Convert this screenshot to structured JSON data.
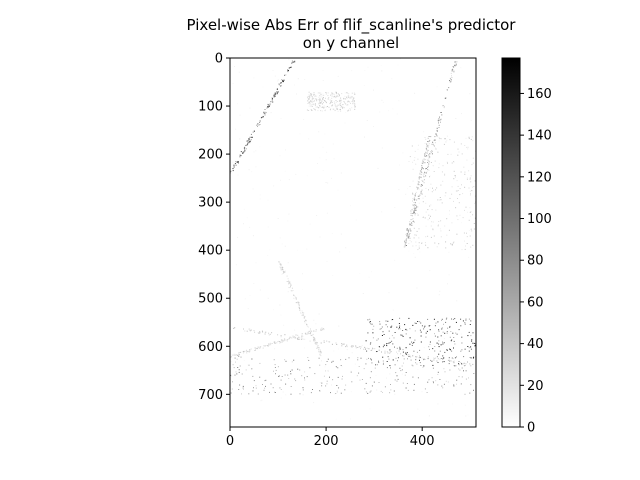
{
  "chart_data": {
    "type": "heatmap",
    "title_line1": "Pixel-wise Abs Err of flif_scanline's predictor",
    "title_line2": "on y channel",
    "xlabel": "",
    "ylabel": "",
    "xlim": [
      0,
      512
    ],
    "ylim": [
      768,
      0
    ],
    "x_ticks": [
      0,
      200,
      400
    ],
    "y_ticks": [
      0,
      100,
      200,
      300,
      400,
      500,
      600,
      700
    ],
    "colorbar": {
      "cmap": "gray_r",
      "vmin": 0,
      "vmax": 177,
      "ticks": [
        0,
        20,
        40,
        60,
        80,
        100,
        120,
        140,
        160
      ]
    },
    "grid": false,
    "features": [
      {
        "kind": "line",
        "from": [
          0,
          240
        ],
        "to": [
          135,
          0
        ],
        "intensity": 0.55
      },
      {
        "kind": "line",
        "from": [
          365,
          390
        ],
        "to": [
          470,
          0
        ],
        "intensity": 0.35
      },
      {
        "kind": "line",
        "from": [
          360,
          400
        ],
        "to": [
          415,
          160
        ],
        "intensity": 0.25
      },
      {
        "kind": "line",
        "from": [
          0,
          560
        ],
        "to": [
          512,
          640
        ],
        "intensity": 0.2
      },
      {
        "kind": "line",
        "from": [
          100,
          420
        ],
        "to": [
          190,
          620
        ],
        "intensity": 0.15
      },
      {
        "kind": "line",
        "from": [
          0,
          620
        ],
        "to": [
          200,
          560
        ],
        "intensity": 0.15
      },
      {
        "kind": "region",
        "x": [
          280,
          512
        ],
        "y": [
          540,
          640
        ],
        "intensity": 0.6
      },
      {
        "kind": "region",
        "x": [
          0,
          512
        ],
        "y": [
          620,
          700
        ],
        "intensity": 0.35
      },
      {
        "kind": "region",
        "x": [
          160,
          260
        ],
        "y": [
          70,
          110
        ],
        "intensity": 0.15
      },
      {
        "kind": "region",
        "x": [
          370,
          512
        ],
        "y": [
          160,
          400
        ],
        "intensity": 0.15
      },
      {
        "kind": "region",
        "x": [
          0,
          512
        ],
        "y": [
          0,
          768
        ],
        "intensity": 0.04
      }
    ]
  }
}
